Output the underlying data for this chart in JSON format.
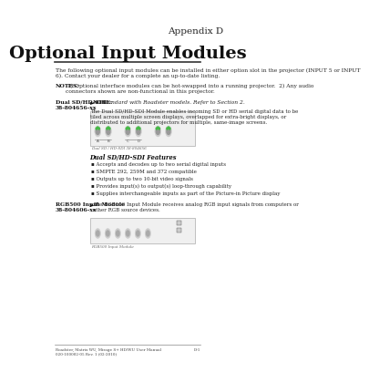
{
  "bg_color": "#ffffff",
  "appendix_label": "Appendix D",
  "title": "Optional Input Modules",
  "intro_text": "The following optional input modules can be installed in either option slot in the projector (INPUT 5 or INPUT\n6). Contact your dealer for a complete an up-to-date listing.",
  "notes_bold": "NOTES:",
  "notes_text": " 1) Optional interface modules can be hot-swapped into a running projector.  2) Any audio\nconnectors shown are non-functional in this projector.",
  "section1_label": "Dual SD/HD-SDI\n38-804656-xx",
  "section1_note_bold": "NOTE:",
  "section1_note_text": " Standard with Roadster models. Refer to Section 2.",
  "section1_desc": "The Dual SD/HD-SDI Module enables incoming SD or HD serial digital data to be\ntiled across multiple screen displays, overlapped for extra-bright displays, or\ndistributed to additional projectors for multiple, same-image screens.",
  "section1_features_title": "Dual SD/HD-SDI Features",
  "section1_features": [
    "Accepts and decodes up to two serial digital inputs",
    "SMPTE 292, 259M and 372 compatible",
    "Outputs up to two 10-bit video signals",
    "Provides input(s) to output(s) loop-through capability",
    "Supplies interchangeable inputs as part of the Picture-in Picture display"
  ],
  "section2_label": "RGB500 Input Module\n38-804606-xx",
  "section2_text": "The RGB500 Input Module receives analog RGB input signals from computers or\nother RGB source devices.",
  "footer_left": "Roadster, Matrix WU, Mirage S+ HD/WU User Manual\n020-100002-05 Rev. 1 (02-2010)",
  "footer_right": "D-1"
}
